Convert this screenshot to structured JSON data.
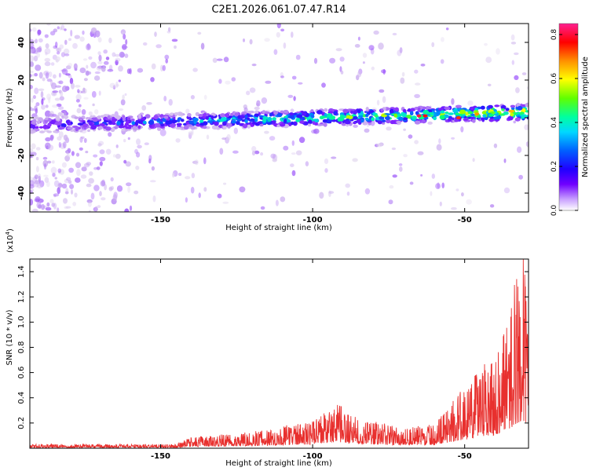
{
  "title": "C2E1.2026.061.07.47.R14",
  "colors": {
    "snr_line": "#e8302e",
    "scatter_point": "#8a2be2",
    "axis": "#000000"
  },
  "colormap": [
    "#f0f0f0",
    "#c8a8f0",
    "#8020ff",
    "#3010ff",
    "#0080ff",
    "#00e0e0",
    "#00ff80",
    "#80ff00",
    "#ffff00",
    "#ffa000",
    "#ff0000",
    "#ff40c0"
  ],
  "chart_data": [
    {
      "type": "scatter",
      "name": "spectrogram",
      "title": "C2E1.2026.061.07.47.R14",
      "xlabel": "Height of straight line (km)",
      "ylabel": "Frequency (Hz)",
      "xlim": [
        -193,
        -29
      ],
      "ylim": [
        -50,
        50
      ],
      "x_ticks": [
        -150,
        -100,
        -50
      ],
      "y_ticks": [
        -40,
        -20,
        0,
        20,
        40
      ],
      "colorbar": {
        "label": "Normalized spectral amplitude",
        "range": [
          0.0,
          0.85
        ],
        "ticks": [
          "0.0",
          "0.2",
          "0.4",
          "0.6",
          "0.8"
        ]
      },
      "ridge": {
        "description_free": true,
        "x_start": -193,
        "x_end": -29,
        "freq_start": -4,
        "freq_end": 3,
        "amplitude_start": 0.18,
        "amplitude_end": 0.65
      },
      "hotspots": [
        {
          "x": -65,
          "freq": 1,
          "amp": 0.8
        },
        {
          "x": -63,
          "freq": 1,
          "amp": 0.78
        },
        {
          "x": -52,
          "freq": 0,
          "amp": 0.75
        },
        {
          "x": -46,
          "freq": 2,
          "amp": 0.7
        }
      ]
    },
    {
      "type": "line",
      "name": "snr",
      "xlabel": "Height of straight line (km)",
      "ylabel": "SNR (10 * v/v)",
      "y_multiplier": "(x10",
      "y_multiplier_exp": "4",
      "y_multiplier_close": ")",
      "xlim": [
        -193,
        -29
      ],
      "ylim": [
        0,
        1.5
      ],
      "x_ticks": [
        -150,
        -100,
        -50
      ],
      "y_ticks": [
        "0.2",
        "0.4",
        "0.6",
        "0.8",
        "1.0",
        "1.2",
        "1.4"
      ],
      "envelope": [
        {
          "x": -193,
          "y": 0.03
        },
        {
          "x": -145,
          "y": 0.03
        },
        {
          "x": -140,
          "y": 0.08
        },
        {
          "x": -120,
          "y": 0.12
        },
        {
          "x": -110,
          "y": 0.16
        },
        {
          "x": -100,
          "y": 0.2
        },
        {
          "x": -92,
          "y": 0.32
        },
        {
          "x": -85,
          "y": 0.22
        },
        {
          "x": -70,
          "y": 0.15
        },
        {
          "x": -60,
          "y": 0.18
        },
        {
          "x": -50,
          "y": 0.45
        },
        {
          "x": -40,
          "y": 0.7
        },
        {
          "x": -35,
          "y": 1.05
        },
        {
          "x": -31,
          "y": 1.5
        },
        {
          "x": -29,
          "y": 1.2
        }
      ]
    }
  ]
}
